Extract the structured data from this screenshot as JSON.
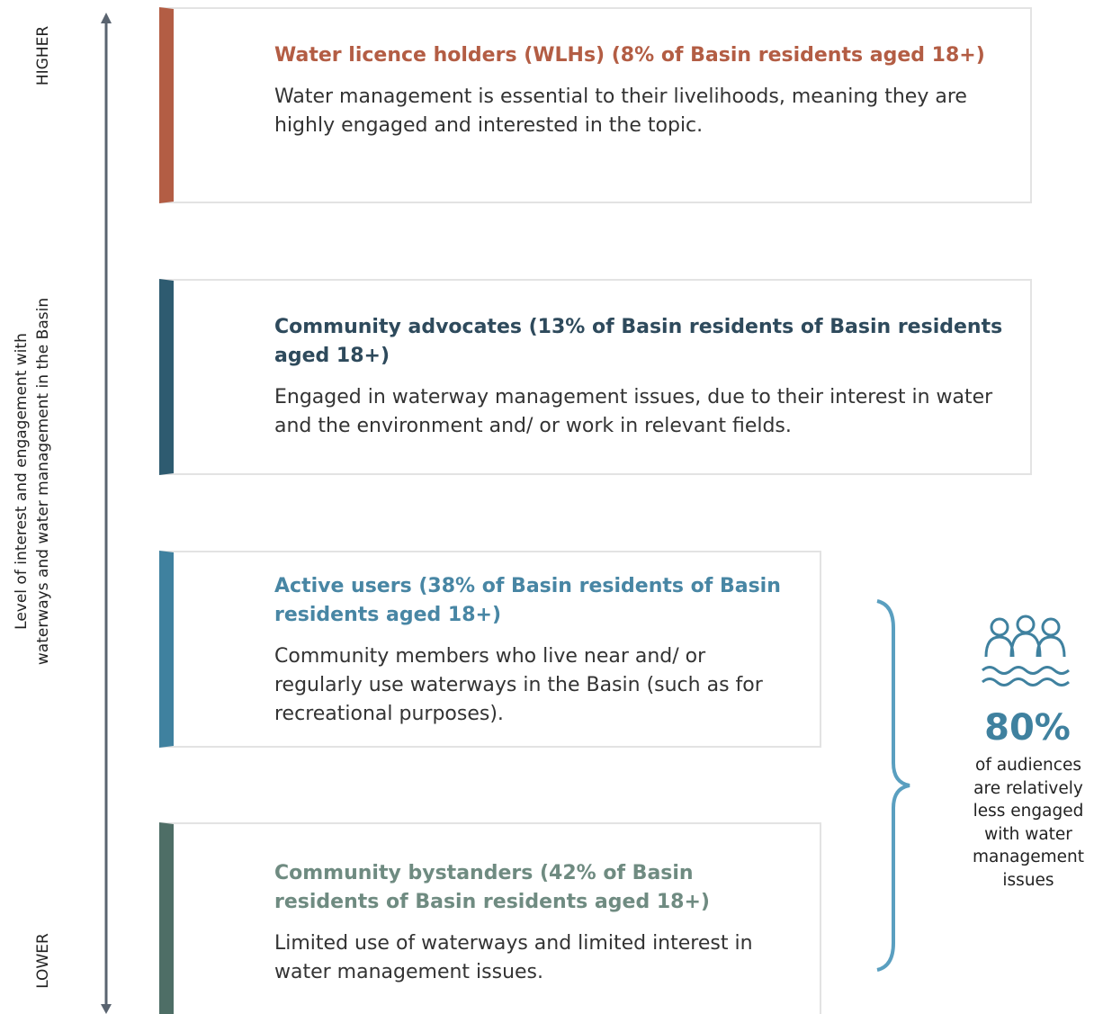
{
  "axis": {
    "top_label": "HIGHER",
    "bottom_label": "LOWER",
    "title_lines": [
      "Level of interest and engagement with",
      "waterways and water management in the Basin"
    ]
  },
  "cards": [
    {
      "title": "Water licence holders (WLHs) (8% of Basin residents aged 18+)",
      "description": "Water management is essential to their livelihoods, meaning they are highly engaged and interested in the topic.",
      "color": "#b35d44",
      "title_color": "#b35d44"
    },
    {
      "title": "Community advocates (13% of Basin residents of Basin residents aged 18+)",
      "description": "Engaged in waterway management issues, due to their interest in water and the environment and/ or work in relevant fields.",
      "color": "#2e5b70",
      "title_color": "#2e4a5c"
    },
    {
      "title": "Active users (38% of Basin residents of Basin residents aged 18+)",
      "description": "Community members who live near and/ or regularly use waterways in the Basin (such as for recreational purposes).",
      "color": "#3f819f",
      "title_color": "#4886a4"
    },
    {
      "title": "Community bystanders (42% of Basin residents of Basin residents aged 18+)",
      "description": "Limited use of waterways and limited interest in water management issues.",
      "color": "#4e6e66",
      "title_color": "#6f8b81"
    }
  ],
  "summary": {
    "figure": "80%",
    "text": "of audiences are relatively less engaged with water management issues",
    "color": "#3f819f"
  }
}
